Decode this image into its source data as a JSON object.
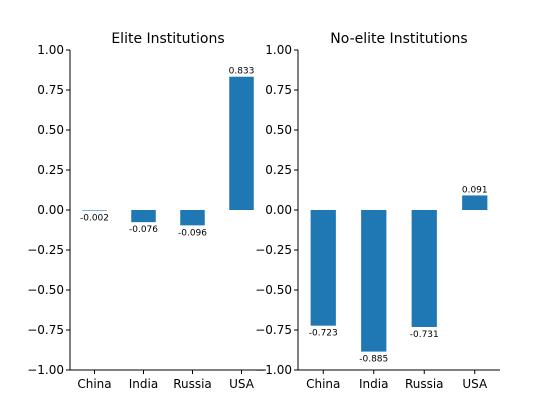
{
  "chart_data": [
    {
      "type": "bar",
      "title": "Elite Institutions",
      "categories": [
        "China",
        "India",
        "Russia",
        "USA"
      ],
      "values": [
        -0.002,
        -0.076,
        -0.096,
        0.833
      ],
      "labels": [
        "-0.002",
        "-0.076",
        "-0.096",
        "0.833"
      ],
      "ylim": [
        -1.0,
        1.0
      ],
      "yticks": [
        1.0,
        0.75,
        0.5,
        0.25,
        0.0,
        -0.25,
        -0.5,
        -0.75,
        -1.0
      ],
      "ytick_labels": [
        "1.00",
        "0.75",
        "0.50",
        "0.25",
        "0.00",
        "−0.25",
        "−0.50",
        "−0.75",
        "−1.00"
      ],
      "xlabel": "",
      "ylabel": "",
      "bar_color": "#1f77b4"
    },
    {
      "type": "bar",
      "title": "No-elite Institutions",
      "categories": [
        "China",
        "India",
        "Russia",
        "USA"
      ],
      "values": [
        -0.723,
        -0.885,
        -0.731,
        0.091
      ],
      "labels": [
        "-0.723",
        "-0.885",
        "-0.731",
        "0.091"
      ],
      "ylim": [
        -1.0,
        1.0
      ],
      "yticks": [
        1.0,
        0.75,
        0.5,
        0.25,
        0.0,
        -0.25,
        -0.5,
        -0.75,
        -1.0
      ],
      "ytick_labels": [
        "1.00",
        "0.75",
        "0.50",
        "0.25",
        "0.00",
        "−0.25",
        "−0.50",
        "−0.75",
        "−1.00"
      ],
      "xlabel": "",
      "ylabel": "",
      "bar_color": "#1f77b4"
    }
  ]
}
